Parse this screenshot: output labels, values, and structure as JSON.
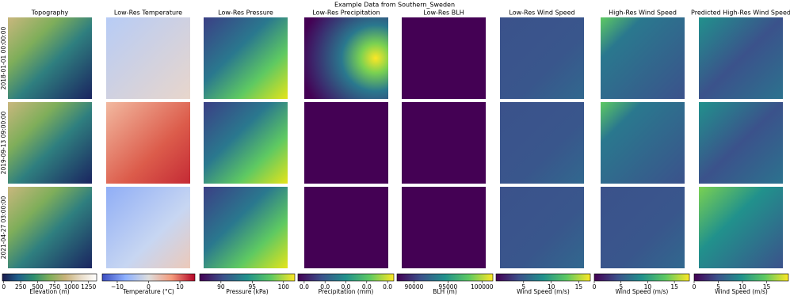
{
  "chart_data": {
    "type": "image-grid",
    "title": "Example Data from Southern_Sweden",
    "columns": [
      "Topography",
      "Low-Res Temperature",
      "Low-Res Pressure",
      "Low-Res Precipitation",
      "Low-Res BLH",
      "Low-Res Wind Speed",
      "High-Res Wind Speed",
      "Predicted High-Res Wind Speed"
    ],
    "rows": [
      "2018-01-01 00:00:00",
      "2019-09-13 09:00:00",
      "2021-04-27 03:00:00"
    ],
    "colorbars": [
      {
        "label": "Elevation (m)",
        "xlim": [
          -20,
          1370
        ],
        "xticks": [
          0,
          250,
          500,
          750,
          1000,
          1250
        ],
        "colors": [
          "#1a1a4e",
          "#1f5f8b",
          "#2f8f6f",
          "#7fae5a",
          "#c8b27a",
          "#e8dcc8",
          "#ffffff"
        ]
      },
      {
        "label": "Temperature (°C)",
        "xlim": [
          -14.8,
          14.8
        ],
        "xticks": [
          {
            "value": -10,
            "label": "−10"
          },
          0,
          10
        ],
        "colors": [
          "#3b4cc0",
          "#8db0fe",
          "#dddddd",
          "#f49a7b",
          "#b40426"
        ]
      },
      {
        "label": "Pressure (kPa)",
        "xlim": [
          86.6,
          101.8
        ],
        "xticks": [
          90,
          95,
          100
        ],
        "colors": [
          "#440154",
          "#3b528b",
          "#21918c",
          "#5ec962",
          "#fde725"
        ]
      },
      {
        "label": "Precipitation (mm)",
        "xlim": [
          -0.003,
          0.043
        ],
        "xticks": [
          {
            "value": 0,
            "label": "0.0"
          },
          {
            "value": 0.01,
            "label": "0.0"
          },
          {
            "value": 0.02,
            "label": "0.0"
          },
          {
            "value": 0.03,
            "label": "0.0"
          },
          {
            "value": 0.04,
            "label": "0.0"
          }
        ],
        "colors": [
          "#440154",
          "#3b528b",
          "#21918c",
          "#5ec962",
          "#fde725"
        ]
      },
      {
        "label": "BLH (m)",
        "xlim": [
          87500,
          101600
        ],
        "xticks": [
          90000,
          95000,
          100000
        ],
        "colors": [
          "#440154",
          "#3b528b",
          "#21918c",
          "#5ec962",
          "#fde725"
        ]
      },
      {
        "label": "Wind Speed (m/s)",
        "xlim": [
          0,
          17.1
        ],
        "xticks": [
          5,
          10,
          15
        ],
        "colors": [
          "#440154",
          "#3b528b",
          "#21918c",
          "#5ec962",
          "#fde725"
        ]
      },
      {
        "label": "Wind Speed (m/s)",
        "xlim": [
          0,
          17.8
        ],
        "xticks": [
          0,
          5,
          10,
          15
        ],
        "colors": [
          "#440154",
          "#3b528b",
          "#21918c",
          "#5ec962",
          "#fde725"
        ]
      },
      {
        "label": "Wind Speed (m/s)",
        "xlim": [
          0,
          19.5
        ],
        "xticks": [
          0,
          5,
          10,
          15
        ],
        "colors": [
          "#440154",
          "#3b528b",
          "#21918c",
          "#5ec962",
          "#fde725"
        ]
      }
    ]
  }
}
